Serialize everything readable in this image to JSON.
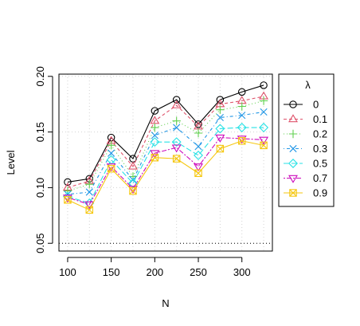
{
  "chart_data": {
    "type": "line",
    "title": "",
    "xlabel": "N",
    "ylabel": "Level",
    "x": [
      100,
      125,
      150,
      175,
      200,
      225,
      250,
      275,
      300,
      325
    ],
    "x_ticks": [
      "100",
      "150",
      "200",
      "250",
      "300"
    ],
    "y_ticks": [
      "0.05",
      "0.10",
      "0.15",
      "0.20"
    ],
    "xlim": [
      90,
      335
    ],
    "ylim": [
      0.043,
      0.202
    ],
    "grid": true,
    "reference_line": 0.05,
    "legend": {
      "title": "λ",
      "placement": "right-outside"
    },
    "series": [
      {
        "name": "0",
        "color": "#000000",
        "marker": "circle",
        "dash": "solid",
        "values": [
          0.105,
          0.108,
          0.145,
          0.126,
          0.169,
          0.179,
          0.157,
          0.179,
          0.186,
          0.192
        ]
      },
      {
        "name": "0.1",
        "color": "#DF536B",
        "marker": "triangle-up",
        "dash": "dashed",
        "values": [
          0.1,
          0.106,
          0.142,
          0.119,
          0.16,
          0.174,
          0.155,
          0.175,
          0.178,
          0.182
        ]
      },
      {
        "name": "0.2",
        "color": "#61D04F",
        "marker": "plus",
        "dash": "dotted",
        "values": [
          0.097,
          0.103,
          0.138,
          0.11,
          0.154,
          0.16,
          0.149,
          0.17,
          0.173,
          0.178
        ]
      },
      {
        "name": "0.3",
        "color": "#2297E6",
        "marker": "cross",
        "dash": "dotdash",
        "values": [
          0.094,
          0.096,
          0.131,
          0.107,
          0.147,
          0.154,
          0.137,
          0.163,
          0.165,
          0.168
        ]
      },
      {
        "name": "0.5",
        "color": "#28E2E5",
        "marker": "diamond",
        "dash": "longdash",
        "values": [
          0.092,
          0.086,
          0.125,
          0.104,
          0.141,
          0.141,
          0.129,
          0.153,
          0.154,
          0.154
        ]
      },
      {
        "name": "0.7",
        "color": "#CD0BBC",
        "marker": "triangle-down",
        "dash": "twodash",
        "values": [
          0.091,
          0.085,
          0.119,
          0.099,
          0.131,
          0.136,
          0.119,
          0.145,
          0.144,
          0.143
        ]
      },
      {
        "name": "0.9",
        "color": "#F5C710",
        "marker": "square-x",
        "dash": "solid",
        "values": [
          0.089,
          0.08,
          0.117,
          0.097,
          0.127,
          0.126,
          0.113,
          0.135,
          0.142,
          0.138
        ]
      }
    ]
  }
}
